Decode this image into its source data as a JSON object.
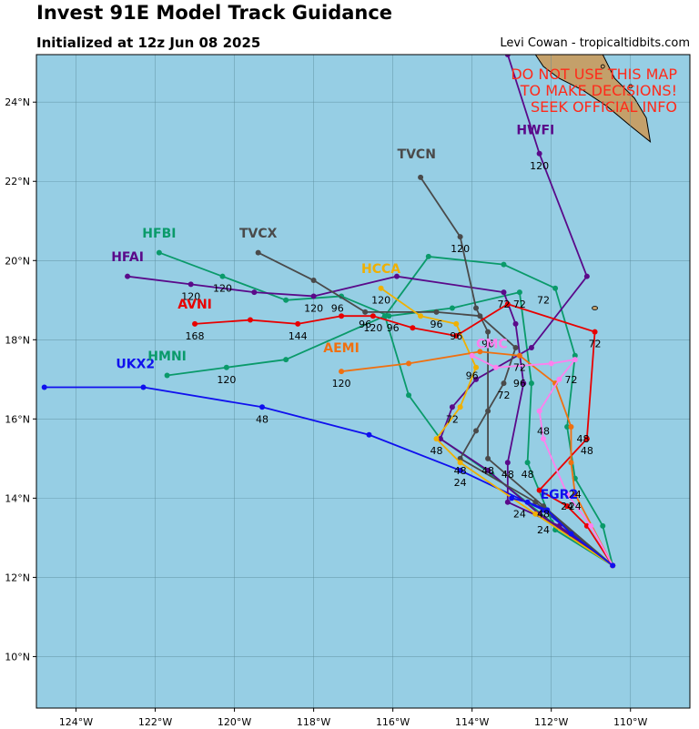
{
  "header": {
    "title": "Invest 91E Model Track Guidance",
    "subtitle": "Initialized at 12z Jun 08 2025",
    "credit": "Levi Cowan - tropicaltidbits.com"
  },
  "warning": [
    "DO NOT USE THIS MAP",
    "TO MAKE DECISIONS!",
    "SEEK OFFICIAL INFO"
  ],
  "colors": {
    "ocean": "#96cee4",
    "land": "#c4a06a",
    "grid": "#5a8a9a",
    "warning": "#ff2a1a"
  },
  "map": {
    "lon_range": [
      -125,
      -108.5
    ],
    "lat_range": [
      8.7,
      25.2
    ],
    "lon_ticks": [
      {
        "value": -124,
        "label": "124°W"
      },
      {
        "value": -122,
        "label": "122°W"
      },
      {
        "value": -120,
        "label": "120°W"
      },
      {
        "value": -118,
        "label": "118°W"
      },
      {
        "value": -116,
        "label": "116°W"
      },
      {
        "value": -114,
        "label": "114°W"
      },
      {
        "value": -112,
        "label": "112°W"
      },
      {
        "value": -110,
        "label": "110°W"
      }
    ],
    "lat_ticks": [
      {
        "value": 10,
        "label": "10°N"
      },
      {
        "value": 12,
        "label": "12°N"
      },
      {
        "value": 14,
        "label": "14°N"
      },
      {
        "value": 16,
        "label": "16°N"
      },
      {
        "value": 18,
        "label": "18°N"
      },
      {
        "value": 20,
        "label": "20°N"
      },
      {
        "value": 22,
        "label": "22°N"
      },
      {
        "value": 24,
        "label": "24°N"
      }
    ]
  },
  "models": [
    {
      "name": "UKX2",
      "color": "#1010ee",
      "track": [
        [
          -110.45,
          12.3
        ],
        [
          -112.2,
          13.7
        ],
        [
          -114.3,
          14.7
        ],
        [
          -116.6,
          15.6
        ],
        [
          -119.3,
          16.3
        ],
        [
          -122.3,
          16.8
        ],
        [
          -124.8,
          16.8
        ]
      ],
      "hour_labels": [
        {
          "lon": -114.3,
          "lat": 14.7,
          "text": "24"
        },
        {
          "lon": -119.3,
          "lat": 16.3,
          "text": "48"
        }
      ],
      "name_pos": {
        "lon": -122.5,
        "lat": 17.1
      }
    },
    {
      "name": "HMNI",
      "color": "#0a9a6a",
      "track": [
        [
          -110.45,
          12.3
        ],
        [
          -112.0,
          13.4
        ],
        [
          -113.5,
          14.6
        ],
        [
          -114.8,
          15.5
        ],
        [
          -115.6,
          16.6
        ],
        [
          -116.2,
          18.6
        ],
        [
          -115.1,
          20.1
        ],
        [
          -113.2,
          19.9
        ],
        [
          -111.9,
          19.3
        ],
        [
          -111.4,
          17.6
        ],
        [
          -111.6,
          15.8
        ],
        [
          -111.4,
          14.5
        ],
        [
          -110.7,
          13.3
        ],
        [
          -110.45,
          12.3
        ]
      ],
      "hour_labels": [],
      "name_pos": null
    },
    {
      "name": "HMNI",
      "color": "#0a9a6a",
      "track": [
        [
          -116.2,
          18.6
        ],
        [
          -118.7,
          17.5
        ],
        [
          -120.2,
          17.3
        ],
        [
          -121.7,
          17.1
        ]
      ],
      "hour_labels": [
        {
          "lon": -120.2,
          "lat": 17.3,
          "text": "120"
        },
        {
          "lon": -116.0,
          "lat": 18.6,
          "text": "96"
        },
        {
          "lon": -112.2,
          "lat": 19.3,
          "text": "72"
        },
        {
          "lon": -111.2,
          "lat": 15.8,
          "text": "48"
        },
        {
          "lon": -111.4,
          "lat": 14.4,
          "text": "24"
        }
      ],
      "name_pos": {
        "lon": -121.7,
        "lat": 17.3
      }
    },
    {
      "name": "HFBI",
      "color": "#0a9a6a",
      "track": [
        [
          -110.45,
          12.3
        ],
        [
          -111.9,
          13.2
        ],
        [
          -112.6,
          14.9
        ],
        [
          -112.5,
          16.9
        ],
        [
          -112.8,
          19.2
        ],
        [
          -114.5,
          18.8
        ],
        [
          -116.1,
          18.6
        ],
        [
          -117.3,
          19.1
        ],
        [
          -118.7,
          19.0
        ],
        [
          -120.3,
          19.6
        ],
        [
          -121.9,
          20.2
        ]
      ],
      "hour_labels": [
        {
          "lon": -112.6,
          "lat": 14.9,
          "text": "48"
        },
        {
          "lon": -112.8,
          "lat": 19.2,
          "text": "72"
        },
        {
          "lon": -117.4,
          "lat": 19.1,
          "text": "96"
        },
        {
          "lon": -120.3,
          "lat": 19.6,
          "text": "120"
        }
      ],
      "name_pos": {
        "lon": -121.9,
        "lat": 20.4
      }
    },
    {
      "name": "HFAI",
      "color": "#5a0a8a",
      "track": [
        [
          -110.45,
          12.3
        ],
        [
          -111.8,
          13.3
        ],
        [
          -113.1,
          13.9
        ],
        [
          -113.1,
          14.9
        ],
        [
          -112.7,
          16.9
        ],
        [
          -112.9,
          18.4
        ],
        [
          -113.2,
          19.2
        ],
        [
          -115.9,
          19.6
        ],
        [
          -118.0,
          19.1
        ],
        [
          -119.5,
          19.2
        ],
        [
          -121.1,
          19.4
        ],
        [
          -122.7,
          19.6
        ]
      ],
      "hour_labels": [
        {
          "lon": -113.1,
          "lat": 14.9,
          "text": "48"
        },
        {
          "lon": -112.8,
          "lat": 17.2,
          "text": "96"
        },
        {
          "lon": -113.2,
          "lat": 19.2,
          "text": "72"
        },
        {
          "lon": -118.0,
          "lat": 19.1,
          "text": "120"
        },
        {
          "lon": -121.1,
          "lat": 19.4,
          "text": "120"
        }
      ],
      "name_pos": {
        "lon": -122.7,
        "lat": 19.8
      }
    },
    {
      "name": "HWFI",
      "color": "#5a0a8a",
      "track": [
        [
          -110.45,
          12.3
        ],
        [
          -112.3,
          13.6
        ],
        [
          -113.6,
          14.7
        ],
        [
          -114.8,
          15.5
        ],
        [
          -114.5,
          16.3
        ],
        [
          -113.9,
          17.0
        ],
        [
          -112.5,
          17.8
        ],
        [
          -111.1,
          19.6
        ],
        [
          -112.3,
          22.7
        ],
        [
          -113.1,
          25.2
        ]
      ],
      "hour_labels": [
        {
          "lon": -114.5,
          "lat": 16.3,
          "text": "72"
        },
        {
          "lon": -112.3,
          "lat": 22.7,
          "text": "120"
        }
      ],
      "name_pos": {
        "lon": -112.4,
        "lat": 23.0
      }
    },
    {
      "name": "TVCN",
      "color": "#4a4a4a",
      "track": [
        [
          -110.45,
          12.3
        ],
        [
          -112.2,
          13.8
        ],
        [
          -113.6,
          15.0
        ],
        [
          -113.6,
          16.2
        ],
        [
          -113.6,
          18.2
        ],
        [
          -113.9,
          18.8
        ],
        [
          -114.3,
          20.6
        ],
        [
          -115.3,
          22.1
        ]
      ],
      "hour_labels": [
        {
          "lon": -113.6,
          "lat": 15.0,
          "text": "48"
        },
        {
          "lon": -113.6,
          "lat": 18.2,
          "text": "96"
        },
        {
          "lon": -114.3,
          "lat": 20.6,
          "text": "120"
        }
      ],
      "name_pos": {
        "lon": -115.4,
        "lat": 22.4
      }
    },
    {
      "name": "TVCX",
      "color": "#4a4a4a",
      "track": [
        [
          -110.45,
          12.3
        ],
        [
          -112.4,
          13.9
        ],
        [
          -114.3,
          15.0
        ],
        [
          -113.9,
          15.7
        ],
        [
          -113.2,
          16.9
        ],
        [
          -112.9,
          17.8
        ],
        [
          -113.8,
          18.6
        ],
        [
          -114.9,
          18.7
        ],
        [
          -116.7,
          18.7
        ],
        [
          -118.0,
          19.5
        ],
        [
          -119.4,
          20.2
        ]
      ],
      "hour_labels": [
        {
          "lon": -114.3,
          "lat": 15.0,
          "text": "48"
        },
        {
          "lon": -113.2,
          "lat": 16.9,
          "text": "72"
        },
        {
          "lon": -114.9,
          "lat": 18.7,
          "text": "96"
        },
        {
          "lon": -116.7,
          "lat": 18.7,
          "text": "96"
        }
      ],
      "name_pos": {
        "lon": -119.4,
        "lat": 20.4
      }
    },
    {
      "name": "HCCA",
      "color": "#f0b000",
      "track": [
        [
          -110.45,
          12.3
        ],
        [
          -112.4,
          13.6
        ],
        [
          -114.3,
          14.9
        ],
        [
          -114.9,
          15.5
        ],
        [
          -114.3,
          16.3
        ],
        [
          -113.9,
          17.3
        ],
        [
          -114.4,
          18.4
        ],
        [
          -115.3,
          18.6
        ],
        [
          -116.3,
          19.3
        ]
      ],
      "hour_labels": [
        {
          "lon": -114.9,
          "lat": 15.5,
          "text": "48"
        },
        {
          "lon": -114.4,
          "lat": 18.4,
          "text": "96"
        },
        {
          "lon": -116.3,
          "lat": 19.3,
          "text": "120"
        }
      ],
      "name_pos": {
        "lon": -116.3,
        "lat": 19.5
      }
    },
    {
      "name": "AVNI",
      "color": "#e80000",
      "track": [
        [
          -110.45,
          12.3
        ],
        [
          -111.1,
          13.3
        ],
        [
          -111.6,
          13.8
        ],
        [
          -112.3,
          14.2
        ],
        [
          -111.1,
          15.5
        ],
        [
          -110.9,
          18.2
        ],
        [
          -113.1,
          18.9
        ],
        [
          -114.4,
          18.1
        ],
        [
          -115.5,
          18.3
        ],
        [
          -116.5,
          18.6
        ],
        [
          -117.3,
          18.6
        ],
        [
          -118.4,
          18.4
        ],
        [
          -119.6,
          18.5
        ],
        [
          -121.0,
          18.4
        ]
      ],
      "hour_labels": [
        {
          "lon": -111.1,
          "lat": 15.5,
          "text": "48"
        },
        {
          "lon": -110.9,
          "lat": 18.2,
          "text": "72"
        },
        {
          "lon": -116.5,
          "lat": 18.6,
          "text": "120"
        },
        {
          "lon": -118.4,
          "lat": 18.4,
          "text": "144"
        },
        {
          "lon": -121.0,
          "lat": 18.4,
          "text": "168"
        }
      ],
      "name_pos": {
        "lon": -121.0,
        "lat": 18.6
      }
    },
    {
      "name": "AEMI",
      "color": "#f07010",
      "track": [
        [
          -110.45,
          12.3
        ],
        [
          -111.4,
          14.1
        ],
        [
          -111.5,
          14.9
        ],
        [
          -111.5,
          15.8
        ],
        [
          -111.9,
          16.9
        ],
        [
          -112.8,
          17.6
        ],
        [
          -113.8,
          17.7
        ],
        [
          -115.6,
          17.4
        ],
        [
          -117.3,
          17.2
        ]
      ],
      "hour_labels": [
        {
          "lon": -111.4,
          "lat": 14.1,
          "text": "24"
        },
        {
          "lon": -112.8,
          "lat": 17.6,
          "text": "72"
        },
        {
          "lon": -117.3,
          "lat": 17.2,
          "text": "120"
        }
      ],
      "name_pos": {
        "lon": -117.3,
        "lat": 17.5
      }
    },
    {
      "name": "CMC",
      "color": "#ff80ee",
      "track": [
        [
          -110.45,
          12.3
        ],
        [
          -111.0,
          13.3
        ],
        [
          -111.6,
          14.1
        ],
        [
          -112.2,
          15.5
        ],
        [
          -112.3,
          16.2
        ],
        [
          -111.8,
          17.0
        ],
        [
          -111.4,
          17.5
        ],
        [
          -112.0,
          17.4
        ],
        [
          -113.4,
          17.3
        ],
        [
          -114.0,
          17.6
        ]
      ],
      "hour_labels": [
        {
          "lon": -111.6,
          "lat": 14.1,
          "text": "24"
        },
        {
          "lon": -112.2,
          "lat": 16.0,
          "text": "48"
        },
        {
          "lon": -111.5,
          "lat": 17.3,
          "text": "72"
        },
        {
          "lon": -114.0,
          "lat": 17.4,
          "text": "96"
        }
      ],
      "name_pos": {
        "lon": -113.5,
        "lat": 17.6
      }
    },
    {
      "name": "EGR2",
      "color": "#1010ee",
      "track": [
        [
          -110.45,
          12.3
        ],
        [
          -111.5,
          13.1
        ],
        [
          -112.1,
          13.7
        ],
        [
          -112.6,
          13.9
        ],
        [
          -113.0,
          14.0
        ]
      ],
      "hour_labels": [
        {
          "lon": -112.2,
          "lat": 13.5,
          "text": "24"
        },
        {
          "lon": -112.8,
          "lat": 13.9,
          "text": "24"
        },
        {
          "lon": -112.2,
          "lat": 13.9,
          "text": "48"
        }
      ],
      "name_pos": {
        "lon": -111.8,
        "lat": 13.8
      }
    }
  ]
}
